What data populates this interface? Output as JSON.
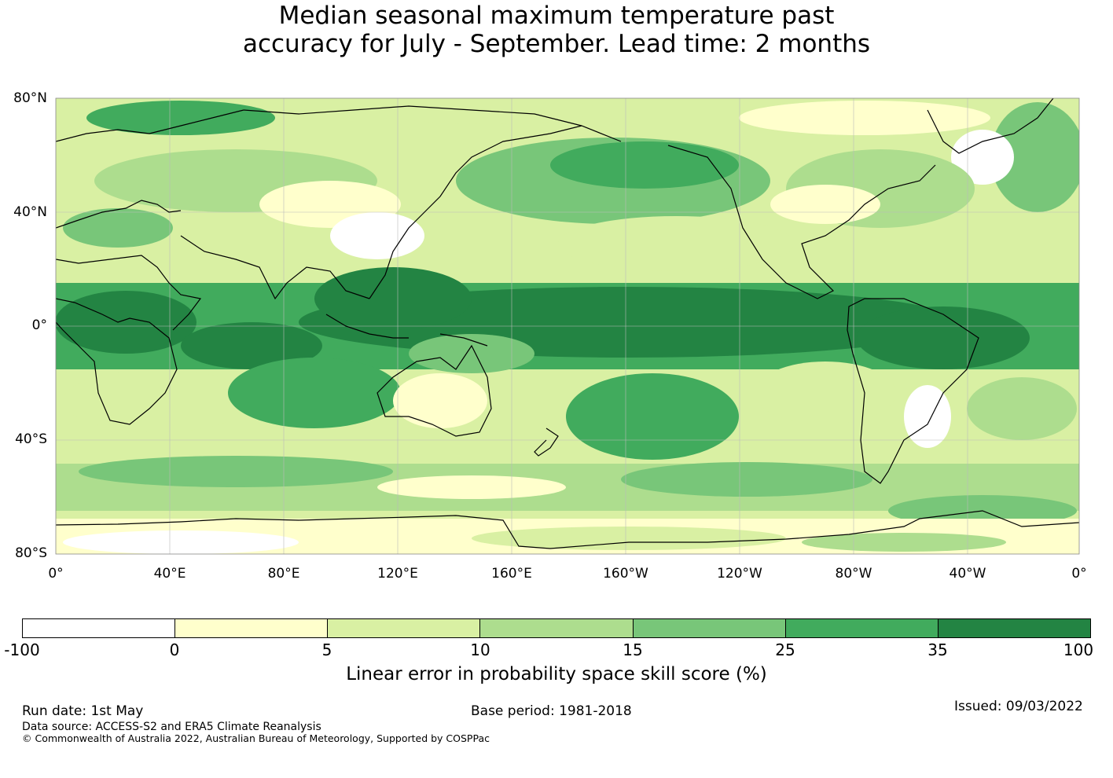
{
  "title": {
    "line1": "Median seasonal maximum temperature past",
    "line2": "accuracy for July - September. Lead time: 2 months"
  },
  "map": {
    "lat_labels": [
      "80°N",
      "40°N",
      "0°",
      "40°S",
      "80°S"
    ],
    "lon_labels": [
      "0°",
      "40°E",
      "80°E",
      "120°E",
      "160°E",
      "160°W",
      "120°W",
      "80°W",
      "40°W",
      "0°"
    ],
    "colors": {
      "band_minus100_0": "#ffffff",
      "band_0_5": "#ffffcc",
      "band_5_10": "#d9f0a3",
      "band_10_15": "#addd8e",
      "band_15_25": "#78c679",
      "band_25_35": "#41ab5d",
      "band_35_100": "#238443",
      "coastline": "#000000"
    }
  },
  "colorbar": {
    "ticks": [
      "-100",
      "0",
      "5",
      "10",
      "15",
      "25",
      "35",
      "100"
    ],
    "colors": [
      "#ffffff",
      "#ffffcc",
      "#d9f0a3",
      "#addd8e",
      "#78c679",
      "#41ab5d",
      "#238443"
    ],
    "label": "Linear error in probability space skill score (%)"
  },
  "footer": {
    "run_date": "Run date: 1st May",
    "base_period": "Base period: 1981-2018",
    "issued": "Issued: 09/03/2022",
    "data_source": "Data source: ACCESS-S2 and ERA5 Climate Reanalysis",
    "copyright": "© Commonwealth of Australia 2022, Australian Bureau of Meteorology, Supported by COSPPac"
  }
}
